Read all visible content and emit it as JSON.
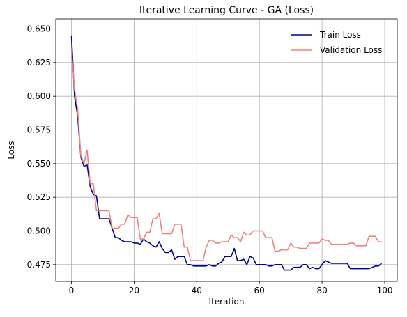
{
  "chart_data": {
    "type": "line",
    "title": "Iterative Learning Curve - GA (Loss)",
    "xlabel": "Iteration",
    "ylabel": "Loss",
    "xlim": [
      -5,
      104
    ],
    "ylim": [
      0.4625,
      0.6575
    ],
    "xticks": [
      0,
      20,
      40,
      60,
      80,
      100
    ],
    "yticks": [
      0.475,
      0.5,
      0.525,
      0.55,
      0.575,
      0.6,
      0.625,
      0.65
    ],
    "grid": true,
    "legend_position": "top-right",
    "series": [
      {
        "name": "Train Loss",
        "color": "#00008b",
        "x": [
          0,
          1,
          2,
          3,
          4,
          5,
          6,
          7,
          8,
          9,
          10,
          11,
          12,
          13,
          14,
          15,
          16,
          17,
          18,
          19,
          20,
          21,
          22,
          23,
          24,
          25,
          26,
          27,
          28,
          29,
          30,
          31,
          32,
          33,
          34,
          35,
          36,
          37,
          38,
          39,
          40,
          41,
          42,
          43,
          44,
          45,
          46,
          47,
          48,
          49,
          50,
          51,
          52,
          53,
          54,
          55,
          56,
          57,
          58,
          59,
          60,
          61,
          62,
          63,
          64,
          65,
          66,
          67,
          68,
          69,
          70,
          71,
          72,
          73,
          74,
          75,
          76,
          77,
          78,
          79,
          80,
          81,
          82,
          83,
          84,
          85,
          86,
          87,
          88,
          89,
          90,
          91,
          92,
          93,
          94,
          95,
          96,
          97,
          98,
          99
        ],
        "values": [
          0.645,
          0.6,
          0.585,
          0.555,
          0.548,
          0.549,
          0.533,
          0.527,
          0.526,
          0.509,
          0.509,
          0.509,
          0.509,
          0.502,
          0.495,
          0.495,
          0.493,
          0.492,
          0.492,
          0.492,
          0.491,
          0.491,
          0.49,
          0.494,
          0.492,
          0.491,
          0.489,
          0.488,
          0.492,
          0.487,
          0.484,
          0.484,
          0.486,
          0.479,
          0.481,
          0.481,
          0.481,
          0.475,
          0.475,
          0.474,
          0.474,
          0.474,
          0.474,
          0.474,
          0.475,
          0.474,
          0.474,
          0.476,
          0.477,
          0.481,
          0.481,
          0.481,
          0.487,
          0.478,
          0.478,
          0.479,
          0.475,
          0.481,
          0.48,
          0.475,
          0.475,
          0.475,
          0.475,
          0.474,
          0.474,
          0.475,
          0.475,
          0.475,
          0.471,
          0.471,
          0.471,
          0.473,
          0.473,
          0.473,
          0.475,
          0.475,
          0.472,
          0.473,
          0.472,
          0.472,
          0.475,
          0.478,
          0.477,
          0.476,
          0.476,
          0.476,
          0.476,
          0.476,
          0.476,
          0.472,
          0.472,
          0.472,
          0.472,
          0.472,
          0.472,
          0.472,
          0.473,
          0.474,
          0.474,
          0.476
        ]
      },
      {
        "name": "Validation Loss",
        "color": "#f08080",
        "x": [
          0,
          1,
          2,
          3,
          4,
          5,
          6,
          7,
          8,
          9,
          10,
          11,
          12,
          13,
          14,
          15,
          16,
          17,
          18,
          19,
          20,
          21,
          22,
          23,
          24,
          25,
          26,
          27,
          28,
          29,
          30,
          31,
          32,
          33,
          34,
          35,
          36,
          37,
          38,
          39,
          40,
          41,
          42,
          43,
          44,
          45,
          46,
          47,
          48,
          49,
          50,
          51,
          52,
          53,
          54,
          55,
          56,
          57,
          58,
          59,
          60,
          61,
          62,
          63,
          64,
          65,
          66,
          67,
          68,
          69,
          70,
          71,
          72,
          73,
          74,
          75,
          76,
          77,
          78,
          79,
          80,
          81,
          82,
          83,
          84,
          85,
          86,
          87,
          88,
          89,
          90,
          91,
          92,
          93,
          94,
          95,
          96,
          97,
          98,
          99
        ],
        "values": [
          0.634,
          0.605,
          0.59,
          0.556,
          0.55,
          0.56,
          0.535,
          0.535,
          0.515,
          0.515,
          0.515,
          0.515,
          0.515,
          0.502,
          0.502,
          0.502,
          0.505,
          0.505,
          0.512,
          0.51,
          0.51,
          0.51,
          0.494,
          0.494,
          0.499,
          0.499,
          0.509,
          0.509,
          0.513,
          0.498,
          0.498,
          0.498,
          0.498,
          0.505,
          0.505,
          0.505,
          0.488,
          0.488,
          0.478,
          0.478,
          0.478,
          0.478,
          0.478,
          0.488,
          0.493,
          0.493,
          0.491,
          0.491,
          0.492,
          0.492,
          0.492,
          0.497,
          0.495,
          0.495,
          0.492,
          0.499,
          0.497,
          0.497,
          0.5,
          0.5,
          0.5,
          0.5,
          0.495,
          0.495,
          0.495,
          0.485,
          0.485,
          0.486,
          0.486,
          0.486,
          0.491,
          0.488,
          0.488,
          0.487,
          0.487,
          0.487,
          0.491,
          0.491,
          0.491,
          0.491,
          0.494,
          0.493,
          0.493,
          0.49,
          0.49,
          0.49,
          0.49,
          0.49,
          0.49,
          0.491,
          0.491,
          0.489,
          0.489,
          0.489,
          0.489,
          0.496,
          0.496,
          0.496,
          0.492,
          0.492
        ]
      }
    ]
  }
}
